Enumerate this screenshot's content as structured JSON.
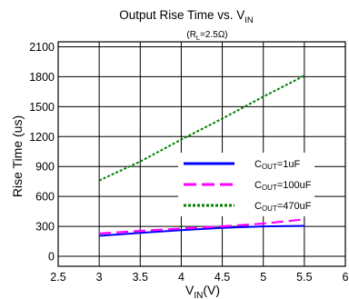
{
  "chart_data": {
    "type": "line",
    "title": {
      "main": "Output Rise Time vs. V",
      "sub": "IN"
    },
    "subtitle": {
      "pre": "(R",
      "sub": "L",
      "post": "=2.5Ω)"
    },
    "xlabel": {
      "main": "V",
      "sub": "IN",
      "post": "(V)"
    },
    "ylabel": "Rise Time (us)",
    "xlim": [
      2.5,
      6
    ],
    "ylim": [
      -100,
      2150
    ],
    "x_ticks": [
      "2.5",
      "3",
      "3.5",
      "4",
      "4.5",
      "5",
      "5.5",
      "6"
    ],
    "y_ticks": [
      "0",
      "300",
      "600",
      "900",
      "1200",
      "1500",
      "1800",
      "2100"
    ],
    "grid": true,
    "legend_position": "right-middle",
    "series": [
      {
        "name": {
          "pre": "C",
          "sub": "OUT",
          "post": "=1uF"
        },
        "color": "#0000ff",
        "style": "solid",
        "x": [
          3,
          3.5,
          4,
          4.5,
          5,
          5.5
        ],
        "y": [
          205,
          235,
          262,
          285,
          300,
          305
        ]
      },
      {
        "name": {
          "pre": "C",
          "sub": "OUT",
          "post": "=100uF"
        },
        "color": "#ff00ff",
        "style": "dashed",
        "x": [
          3,
          3.5,
          4,
          4.5,
          5,
          5.5
        ],
        "y": [
          228,
          255,
          278,
          300,
          328,
          370
        ]
      },
      {
        "name": {
          "pre": "C",
          "sub": "OUT",
          "post": "=470uF"
        },
        "color": "#008000",
        "style": "dotted",
        "x": [
          3,
          3.5,
          4,
          4.5,
          5,
          5.5
        ],
        "y": [
          760,
          950,
          1170,
          1380,
          1600,
          1810
        ]
      }
    ]
  }
}
